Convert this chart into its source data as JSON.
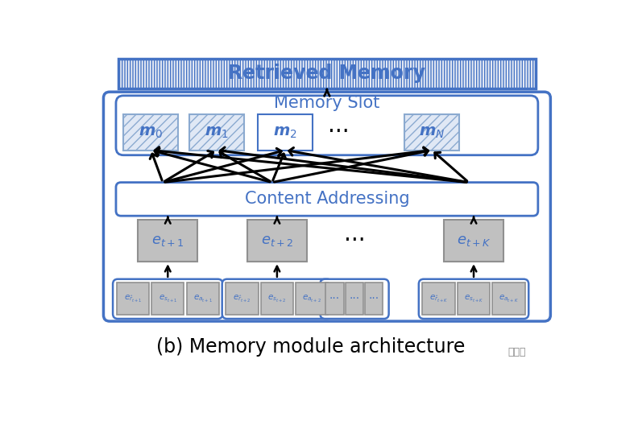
{
  "bg_color": "#ffffff",
  "blue_border": "#4472C4",
  "blue_fill_light": "#EAF0FB",
  "gray_fill": "#BFBFBF",
  "gray_fill_light": "#D9D9D9",
  "white_fill": "#FFFFFF",
  "text_blue": "#4472C4",
  "text_dark": "#000000",
  "retrieved_memory_text": "Retrieved Memory",
  "memory_slot_text": "Memory Slot",
  "content_addressing_text": "Content Addressing",
  "caption": "(b) Memory module architecture",
  "rm_hatch": "|||",
  "rm_hatch_color": "#C0C8D8",
  "cell_hatch": "///",
  "m_labels": [
    "0",
    "1",
    "2",
    "N"
  ],
  "m_hatch": [
    true,
    true,
    false,
    true
  ]
}
